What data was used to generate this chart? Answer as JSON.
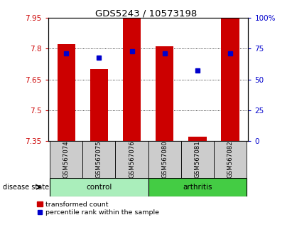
{
  "title": "GDS5243 / 10573198",
  "samples": [
    "GSM567074",
    "GSM567075",
    "GSM567076",
    "GSM567080",
    "GSM567081",
    "GSM567082"
  ],
  "red_top": [
    7.82,
    7.7,
    7.95,
    7.81,
    7.37,
    7.95
  ],
  "red_bottom": [
    7.35,
    7.35,
    7.35,
    7.35,
    7.35,
    7.35
  ],
  "blue_y": [
    7.775,
    7.755,
    7.785,
    7.775,
    7.695,
    7.775
  ],
  "ylim_left": [
    7.35,
    7.95
  ],
  "ylim_right": [
    0,
    100
  ],
  "yticks_left": [
    7.35,
    7.5,
    7.65,
    7.8,
    7.95
  ],
  "yticks_right": [
    0,
    25,
    50,
    75,
    100
  ],
  "ytick_right_labels": [
    "0",
    "25",
    "50",
    "75",
    "100%"
  ],
  "bar_color": "#CC0000",
  "dot_color": "#0000CC",
  "bg_color": "#CCCCCC",
  "control_color": "#AAEEBB",
  "arthritis_color": "#44CC44",
  "legend_label_red": "transformed count",
  "legend_label_blue": "percentile rank within the sample",
  "disease_state_label": "disease state"
}
